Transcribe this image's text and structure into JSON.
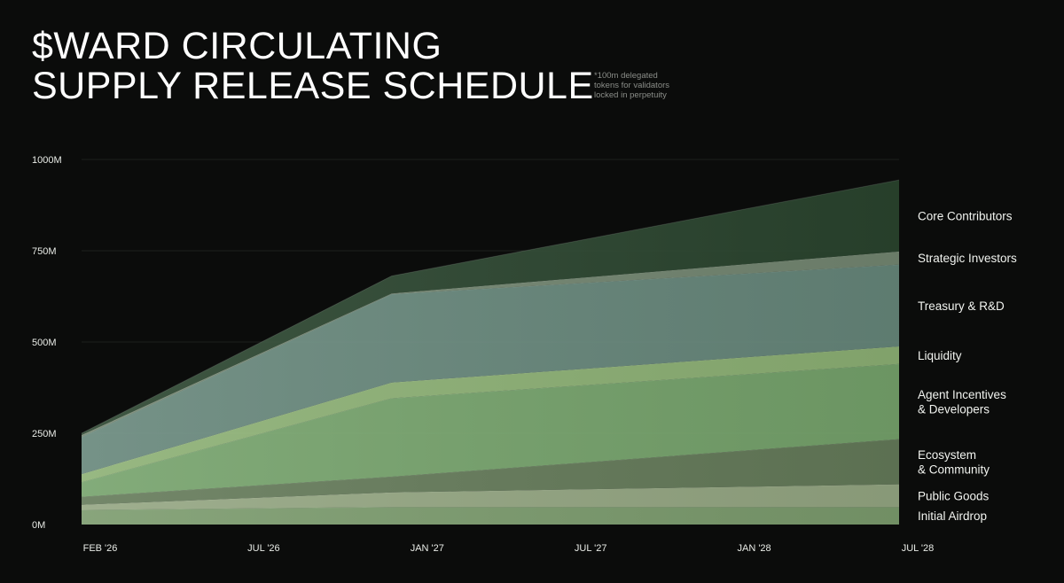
{
  "chart_data": {
    "type": "area",
    "stacked": true,
    "title_lines": [
      "$WARD CIRCULATING",
      "SUPPLY RELEASE SCHEDULE"
    ],
    "annotation_lines": [
      "*100m delegated",
      "tokens for validators",
      "locked in perpetuity"
    ],
    "x_ticks": [
      "FEB '26",
      "JUL '26",
      "JAN '27",
      "JUL '27",
      "JAN '28",
      "JUL '28"
    ],
    "y_ticks": [
      "1000M",
      "750M",
      "500M",
      "250M",
      "0M"
    ],
    "ylim": [
      0,
      1000
    ],
    "grid": true,
    "legend_placement": "right",
    "x": [
      "2026-02",
      "2027-01",
      "2028-07"
    ],
    "series": [
      {
        "name": "Initial Airdrop",
        "lines": [
          "Initial Airdrop"
        ],
        "color": "#86a876",
        "values": [
          40,
          48,
          48
        ]
      },
      {
        "name": "Public Goods",
        "lines": [
          "Public Goods"
        ],
        "color": "#a1b48d",
        "values": [
          14,
          40,
          62
        ]
      },
      {
        "name": "Ecosystem & Community",
        "lines": [
          "Ecosystem",
          "& Community"
        ],
        "color": "#6c8461",
        "values": [
          22,
          43,
          124
        ]
      },
      {
        "name": "Agent Incentives & Developers",
        "lines": [
          "Agent Incentives",
          "& Developers"
        ],
        "color": "#7fb074",
        "values": [
          40,
          215,
          206
        ]
      },
      {
        "name": "Liquidity",
        "lines": [
          "Liquidity"
        ],
        "color": "#98bf7e",
        "values": [
          22,
          43,
          48
        ]
      },
      {
        "name": "Treasury & R&D",
        "lines": [
          "Treasury & R&D"
        ],
        "color": "#6f9184",
        "values": [
          102,
          242,
          224
        ]
      },
      {
        "name": "Strategic Investors",
        "lines": [
          "Strategic Investors"
        ],
        "color": "#7d917b",
        "values": [
          5,
          2,
          36
        ]
      },
      {
        "name": "Core Contributors",
        "lines": [
          "Core Contributors"
        ],
        "color": "#2e4a32",
        "values": [
          5,
          48,
          196
        ]
      }
    ]
  }
}
